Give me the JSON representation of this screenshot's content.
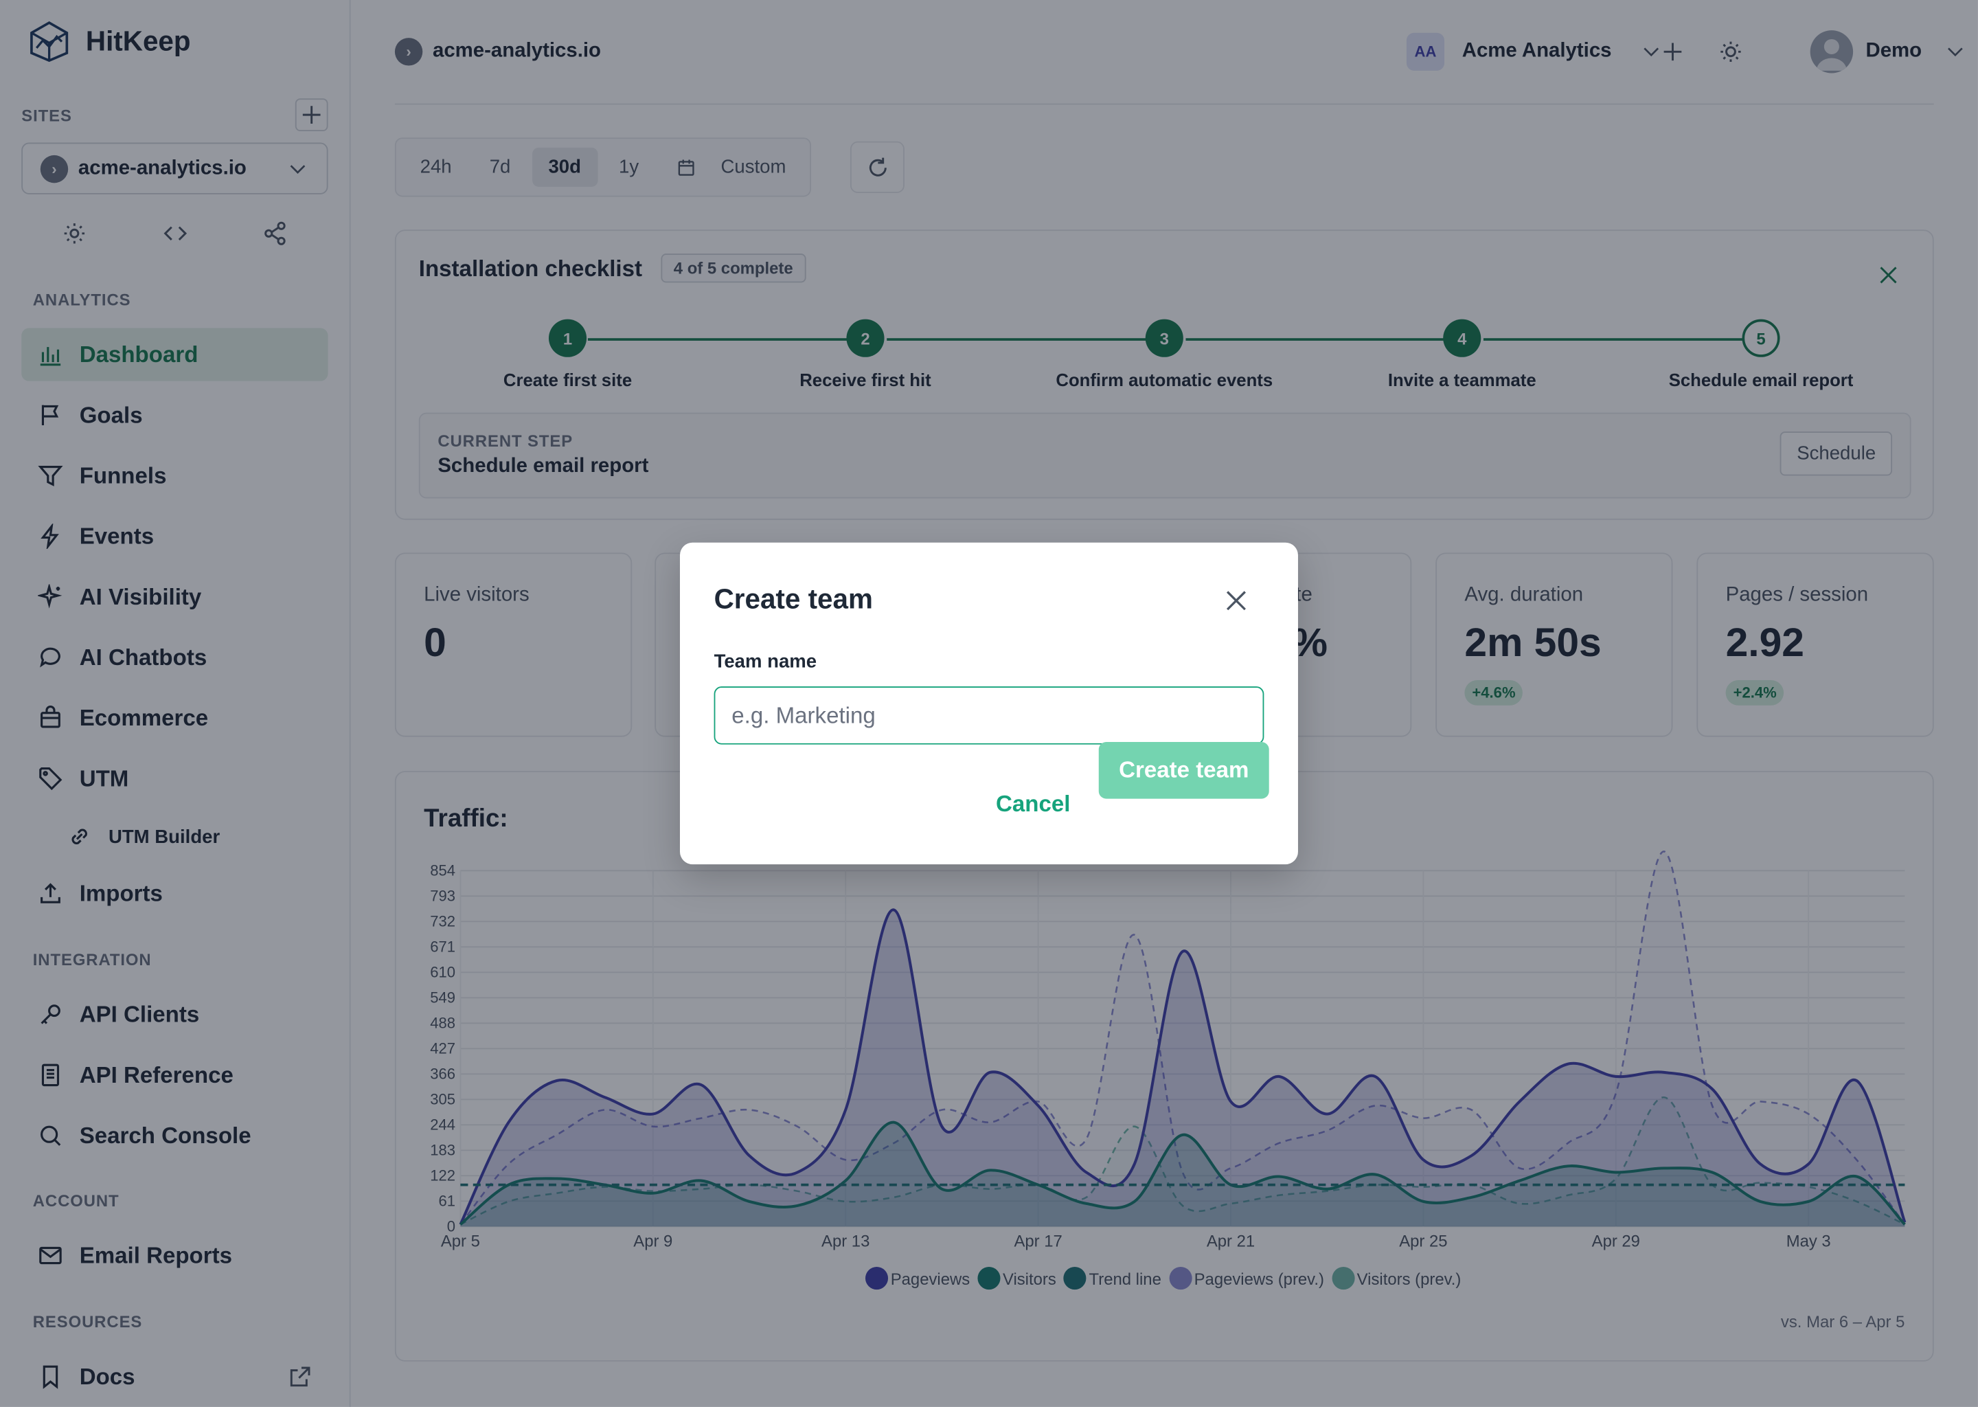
{
  "app": {
    "name": "HitKeep"
  },
  "sidebar": {
    "sites_label": "SITES",
    "site_name": "acme-analytics.io",
    "analytics_label": "ANALYTICS",
    "integration_label": "INTEGRATION",
    "account_label": "ACCOUNT",
    "resources_label": "RESOURCES",
    "items": [
      {
        "label": "Dashboard",
        "icon": "bar-chart-icon"
      },
      {
        "label": "Goals",
        "icon": "flag-icon"
      },
      {
        "label": "Funnels",
        "icon": "funnel-icon"
      },
      {
        "label": "Events",
        "icon": "bolt-icon"
      },
      {
        "label": "AI Visibility",
        "icon": "sparkle-icon"
      },
      {
        "label": "AI Chatbots",
        "icon": "chat-icon"
      },
      {
        "label": "Ecommerce",
        "icon": "bag-icon"
      },
      {
        "label": "UTM",
        "icon": "tag-icon"
      },
      {
        "label": "UTM Builder",
        "icon": "link-icon"
      },
      {
        "label": "Imports",
        "icon": "upload-icon"
      },
      {
        "label": "API Clients",
        "icon": "key-icon"
      },
      {
        "label": "API Reference",
        "icon": "document-icon"
      },
      {
        "label": "Search Console",
        "icon": "search-icon"
      },
      {
        "label": "Email Reports",
        "icon": "mail-icon"
      },
      {
        "label": "Docs",
        "icon": "bookmark-icon"
      }
    ]
  },
  "header": {
    "breadcrumb": "acme-analytics.io",
    "team_initials": "AA",
    "team_name": "Acme Analytics",
    "user_name": "Demo"
  },
  "date_range": {
    "options": [
      "24h",
      "7d",
      "30d",
      "1y",
      "Custom"
    ],
    "selected": "30d"
  },
  "checklist": {
    "title": "Installation checklist",
    "progress": "4 of 5 complete",
    "steps": [
      {
        "num": "1",
        "label": "Create first site",
        "done": true
      },
      {
        "num": "2",
        "label": "Receive first hit",
        "done": true
      },
      {
        "num": "3",
        "label": "Confirm automatic events",
        "done": true
      },
      {
        "num": "4",
        "label": "Invite a teammate",
        "done": true
      },
      {
        "num": "5",
        "label": "Schedule email report",
        "done": false
      }
    ],
    "current_label": "CURRENT STEP",
    "current_step": "Schedule email report",
    "action": "Schedule"
  },
  "stats": [
    {
      "label": "Live visitors",
      "value": "0",
      "change": ""
    },
    {
      "label": "te",
      "value": "%",
      "change": ""
    },
    {
      "label": "Avg. duration",
      "value": "2m 50s",
      "change": "+4.6%"
    },
    {
      "label": "Pages / session",
      "value": "2.92",
      "change": "+2.4%"
    }
  ],
  "traffic": {
    "title": "Traffic:",
    "comparison": "vs. Mar 6 – Apr 5"
  },
  "chart_data": {
    "type": "area",
    "x": [
      "Apr 5",
      "Apr 6",
      "Apr 7",
      "Apr 8",
      "Apr 9",
      "Apr 10",
      "Apr 11",
      "Apr 12",
      "Apr 13",
      "Apr 14",
      "Apr 15",
      "Apr 16",
      "Apr 17",
      "Apr 18",
      "Apr 19",
      "Apr 20",
      "Apr 21",
      "Apr 22",
      "Apr 23",
      "Apr 24",
      "Apr 25",
      "Apr 26",
      "Apr 27",
      "Apr 28",
      "Apr 29",
      "Apr 30",
      "May 1",
      "May 2",
      "May 3",
      "May 4",
      "May 5"
    ],
    "x_ticks": [
      "Apr 5",
      "Apr 9",
      "Apr 13",
      "Apr 17",
      "Apr 21",
      "Apr 25",
      "Apr 29",
      "May 3"
    ],
    "y_ticks": [
      0,
      61,
      122,
      183,
      244,
      305,
      366,
      427,
      488,
      549,
      610,
      671,
      732,
      793,
      854
    ],
    "ylim": [
      0,
      854
    ],
    "series": [
      {
        "name": "Pageviews",
        "color": "#3f3fa8",
        "values": [
          5,
          250,
          350,
          310,
          270,
          340,
          170,
          130,
          280,
          760,
          240,
          370,
          290,
          130,
          150,
          660,
          300,
          360,
          270,
          360,
          160,
          170,
          300,
          390,
          360,
          370,
          330,
          150,
          150,
          350,
          10
        ]
      },
      {
        "name": "Visitors",
        "color": "#16786d",
        "values": [
          5,
          100,
          115,
          100,
          80,
          110,
          60,
          50,
          110,
          250,
          90,
          135,
          100,
          55,
          60,
          220,
          100,
          120,
          90,
          125,
          60,
          70,
          110,
          145,
          130,
          140,
          130,
          60,
          60,
          120,
          5
        ]
      },
      {
        "name": "Trend line",
        "color": "#1e6f73",
        "values": [
          100,
          100,
          100,
          100,
          100,
          100,
          100,
          100,
          100,
          100,
          100,
          100,
          100,
          100,
          100,
          100,
          100,
          100,
          100,
          100,
          100,
          100,
          100,
          100,
          100,
          100,
          100,
          100,
          100,
          100,
          100
        ]
      },
      {
        "name": "Pageviews (prev.)",
        "color": "#8a8ad0",
        "values": [
          5,
          150,
          220,
          280,
          240,
          260,
          280,
          240,
          160,
          200,
          280,
          250,
          300,
          210,
          700,
          130,
          140,
          200,
          230,
          290,
          260,
          280,
          140,
          200,
          320,
          900,
          290,
          300,
          270,
          160,
          5
        ]
      },
      {
        "name": "Visitors (prev.)",
        "color": "#6fb5a7",
        "values": [
          5,
          60,
          80,
          95,
          85,
          90,
          100,
          85,
          60,
          70,
          100,
          90,
          100,
          70,
          240,
          50,
          55,
          75,
          85,
          100,
          95,
          100,
          55,
          75,
          115,
          310,
          100,
          105,
          95,
          60,
          5
        ]
      }
    ]
  },
  "modal": {
    "title": "Create team",
    "field_label": "Team name",
    "placeholder": "e.g. Marketing",
    "cancel": "Cancel",
    "submit": "Create team"
  }
}
